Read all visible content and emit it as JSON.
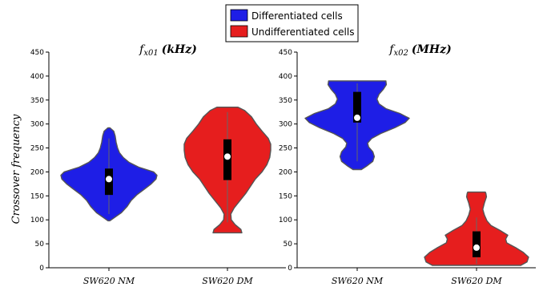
{
  "legend": {
    "items": [
      {
        "label": "Differentiated cells",
        "color": "#1e1ee6"
      },
      {
        "label": "Undifferentiated cells",
        "color": "#e61e1e"
      }
    ],
    "placement": "top-center"
  },
  "chart_data": [
    {
      "type": "violin",
      "title": "f_x01 (kHz)",
      "title_parts": {
        "base": "f",
        "sub": "x01",
        "unit": "(kHz)"
      },
      "xlabel": "",
      "ylabel": "Crossover frequency",
      "ylim": [
        0,
        450
      ],
      "yticks": [
        0,
        50,
        100,
        150,
        200,
        250,
        300,
        350,
        400,
        450
      ],
      "categories": [
        "SW620 NM",
        "SW620 DM"
      ],
      "series": [
        {
          "name": "Differentiated cells",
          "category": "SW620 NM",
          "color": "#1e1ee6",
          "min": 98,
          "q1": 152,
          "median": 185,
          "q3": 207,
          "max": 292,
          "whisker_low": 112,
          "whisker_high": 270,
          "profile": [
            [
              98,
              0.02
            ],
            [
              105,
              0.12
            ],
            [
              115,
              0.26
            ],
            [
              128,
              0.38
            ],
            [
              140,
              0.46
            ],
            [
              152,
              0.58
            ],
            [
              165,
              0.75
            ],
            [
              175,
              0.88
            ],
            [
              185,
              0.98
            ],
            [
              193,
              1.0
            ],
            [
              200,
              0.93
            ],
            [
              210,
              0.62
            ],
            [
              220,
              0.42
            ],
            [
              230,
              0.3
            ],
            [
              240,
              0.22
            ],
            [
              250,
              0.18
            ],
            [
              262,
              0.15
            ],
            [
              275,
              0.13
            ],
            [
              285,
              0.1
            ],
            [
              292,
              0.02
            ]
          ]
        },
        {
          "name": "Undifferentiated cells",
          "category": "SW620 DM",
          "color": "#e61e1e",
          "min": 73,
          "q1": 183,
          "median": 232,
          "q3": 268,
          "max": 335,
          "whisker_low": 95,
          "whisker_high": 325,
          "profile": [
            [
              73,
              0.3
            ],
            [
              80,
              0.28
            ],
            [
              90,
              0.16
            ],
            [
              100,
              0.08
            ],
            [
              112,
              0.07
            ],
            [
              125,
              0.14
            ],
            [
              140,
              0.26
            ],
            [
              155,
              0.38
            ],
            [
              170,
              0.48
            ],
            [
              185,
              0.58
            ],
            [
              200,
              0.72
            ],
            [
              215,
              0.82
            ],
            [
              230,
              0.88
            ],
            [
              245,
              0.9
            ],
            [
              258,
              0.9
            ],
            [
              270,
              0.85
            ],
            [
              285,
              0.72
            ],
            [
              300,
              0.6
            ],
            [
              315,
              0.5
            ],
            [
              328,
              0.36
            ],
            [
              335,
              0.22
            ]
          ]
        }
      ]
    },
    {
      "type": "violin",
      "title": "f_x02 (MHz)",
      "title_parts": {
        "base": "f",
        "sub": "x02",
        "unit": "(MHz)"
      },
      "xlabel": "",
      "ylabel": "",
      "ylim": [
        0,
        450
      ],
      "yticks": [
        0,
        50,
        100,
        150,
        200,
        250,
        300,
        350,
        400,
        450
      ],
      "categories": [
        "SW620 NM",
        "SW620 DM"
      ],
      "series": [
        {
          "name": "Differentiated cells",
          "category": "SW620 NM",
          "color": "#1e1ee6",
          "min": 205,
          "q1": 303,
          "median": 313,
          "q3": 367,
          "max": 390,
          "whisker_low": 222,
          "whisker_high": 385,
          "profile": [
            [
              205,
              0.08
            ],
            [
              212,
              0.18
            ],
            [
              222,
              0.3
            ],
            [
              232,
              0.33
            ],
            [
              242,
              0.3
            ],
            [
              252,
              0.22
            ],
            [
              260,
              0.2
            ],
            [
              270,
              0.28
            ],
            [
              280,
              0.45
            ],
            [
              292,
              0.72
            ],
            [
              303,
              0.92
            ],
            [
              312,
              1.0
            ],
            [
              322,
              0.82
            ],
            [
              332,
              0.55
            ],
            [
              342,
              0.42
            ],
            [
              352,
              0.38
            ],
            [
              362,
              0.42
            ],
            [
              372,
              0.5
            ],
            [
              382,
              0.56
            ],
            [
              390,
              0.55
            ]
          ]
        },
        {
          "name": "Undifferentiated cells",
          "category": "SW620 DM",
          "color": "#e61e1e",
          "min": 5,
          "q1": 22,
          "median": 42,
          "q3": 76,
          "max": 158,
          "whisker_low": 8,
          "whisker_high": 105,
          "profile": [
            [
              5,
              0.85
            ],
            [
              12,
              0.97
            ],
            [
              22,
              1.0
            ],
            [
              32,
              0.9
            ],
            [
              42,
              0.75
            ],
            [
              52,
              0.58
            ],
            [
              60,
              0.56
            ],
            [
              68,
              0.6
            ],
            [
              78,
              0.45
            ],
            [
              88,
              0.28
            ],
            [
              98,
              0.2
            ],
            [
              110,
              0.15
            ],
            [
              122,
              0.12
            ],
            [
              135,
              0.15
            ],
            [
              148,
              0.19
            ],
            [
              155,
              0.18
            ],
            [
              158,
              0.17
            ]
          ]
        }
      ]
    }
  ]
}
